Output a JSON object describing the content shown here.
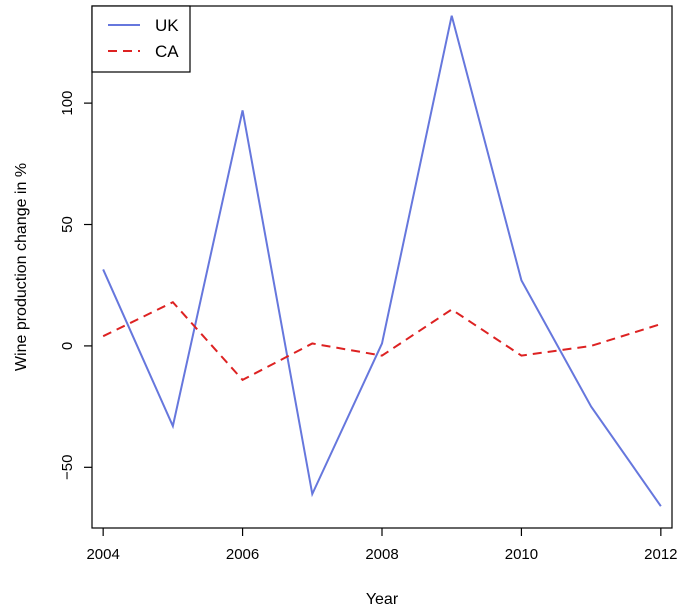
{
  "chart_data": {
    "type": "line",
    "title": "",
    "xlabel": "Year",
    "ylabel": "Wine production change in %",
    "x": [
      2004,
      2005,
      2006,
      2007,
      2008,
      2009,
      2010,
      2011,
      2012
    ],
    "xlim": [
      2003.84,
      2012.16
    ],
    "ylim": [
      -75,
      140
    ],
    "x_ticks": [
      "2004",
      "2006",
      "2008",
      "2010",
      "2012"
    ],
    "y_ticks": [
      "-50",
      "0",
      "50",
      "100"
    ],
    "legend_position": "top-left",
    "grid": false,
    "series": [
      {
        "name": "UK",
        "color": "#6677dd",
        "dash": "solid",
        "values": [
          31.5,
          -33,
          97,
          -61,
          1,
          136,
          27,
          -25,
          -66
        ]
      },
      {
        "name": "CA",
        "color": "#dd2222",
        "dash": "dashed",
        "values": [
          4,
          18,
          -14,
          1,
          -4,
          15,
          -4,
          0,
          9
        ]
      }
    ]
  }
}
